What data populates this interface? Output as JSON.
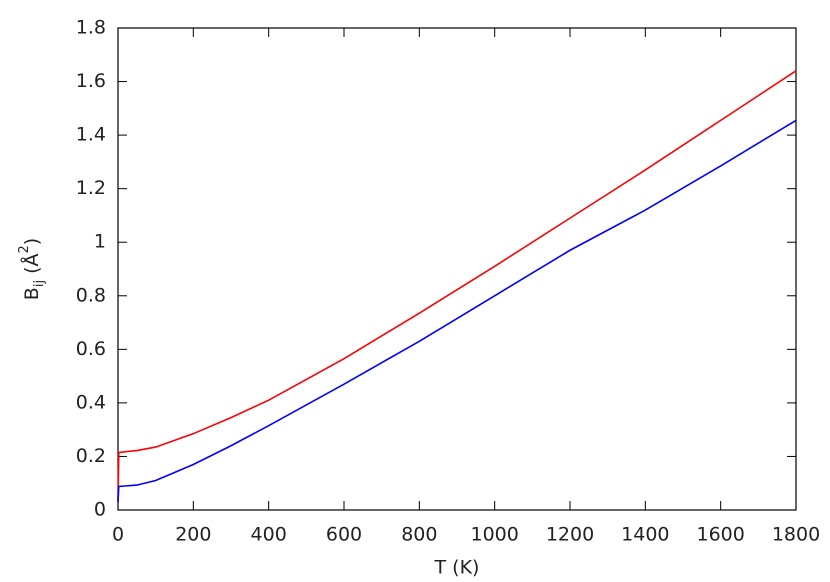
{
  "chart_data": {
    "type": "line",
    "xlabel": "T (K)",
    "ylabel_parts": [
      "B",
      "ij",
      " (Å",
      "2",
      ")"
    ],
    "x": [
      0,
      2,
      50,
      100,
      200,
      300,
      400,
      600,
      800,
      1000,
      1200,
      1400,
      1600,
      1800
    ],
    "series": [
      {
        "color": "#ff0000",
        "values": [
          0.03,
          0.215,
          0.222,
          0.235,
          0.285,
          0.345,
          0.41,
          0.565,
          0.735,
          0.91,
          1.09,
          1.27,
          1.455,
          1.64
        ]
      },
      {
        "color": "#0000ff",
        "values": [
          0.03,
          0.088,
          0.093,
          0.11,
          0.17,
          0.24,
          0.315,
          0.47,
          0.63,
          0.8,
          0.97,
          1.12,
          1.285,
          1.455
        ]
      }
    ],
    "xlim": [
      0,
      1800
    ],
    "xticks": [
      0,
      200,
      400,
      600,
      800,
      1000,
      1200,
      1400,
      1600,
      1800
    ],
    "ylim": [
      0,
      1.8
    ],
    "yticks": [
      0,
      0.2,
      0.4,
      0.6,
      0.8,
      1,
      1.2,
      1.4,
      1.6,
      1.8
    ],
    "grid": false
  }
}
